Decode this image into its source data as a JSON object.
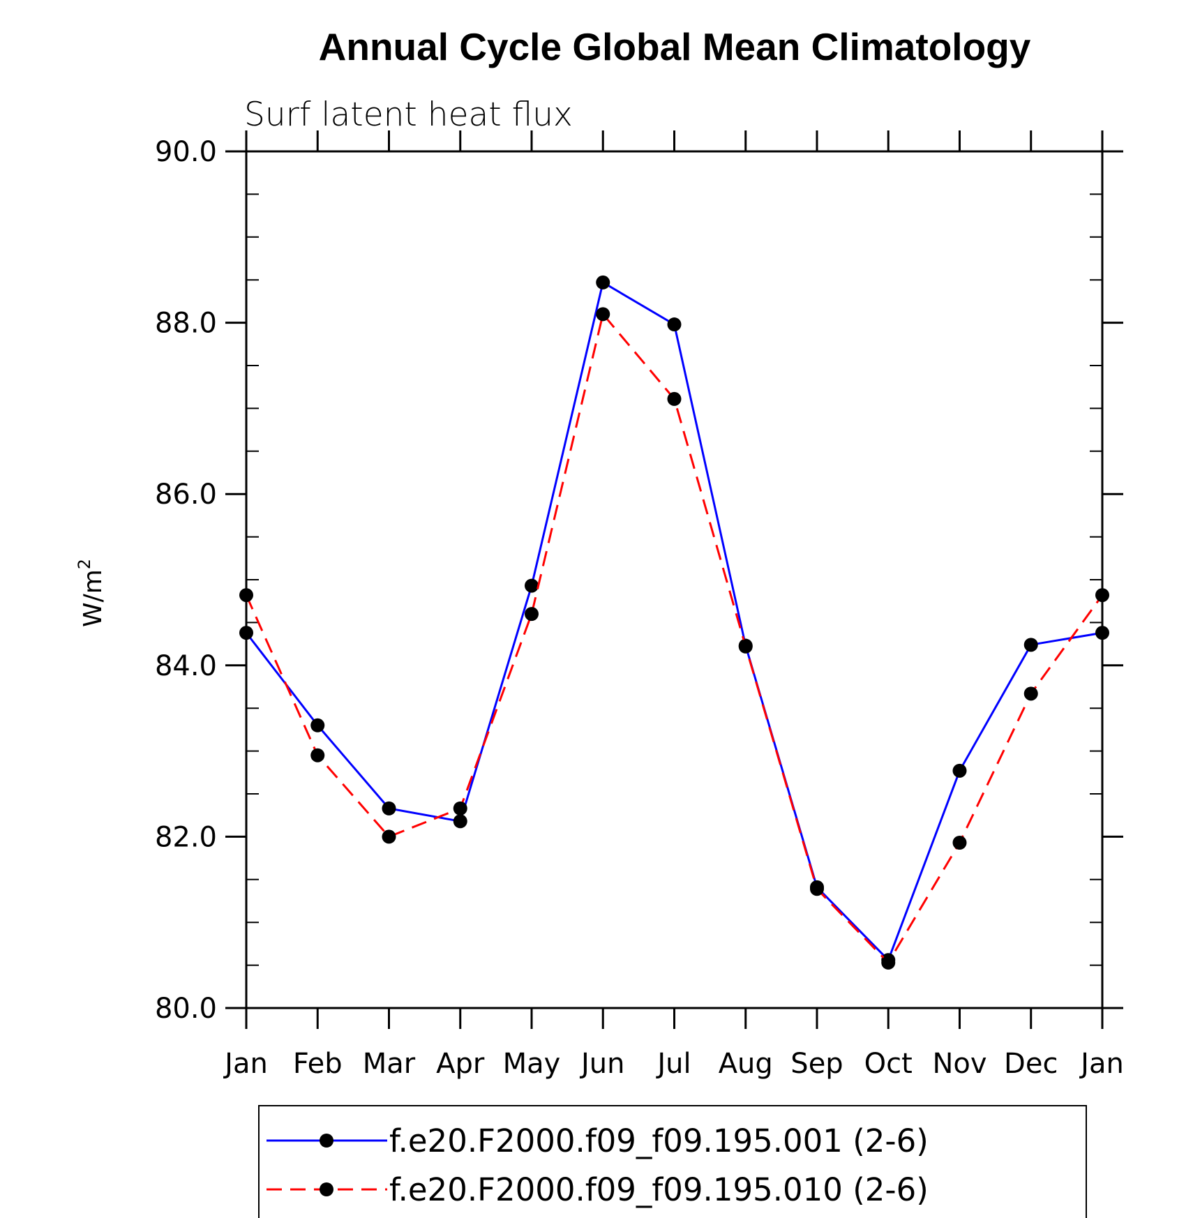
{
  "chart_data": {
    "type": "line",
    "title": "Annual Cycle Global Mean Climatology",
    "subtitle": "Surf latent heat flux",
    "ylabel_base": "W/m",
    "ylabel_sup": "2",
    "ylim": [
      80.0,
      90.0
    ],
    "ytick_values": [
      80,
      82,
      84,
      86,
      88,
      90
    ],
    "ytick_labels": [
      "80.0",
      "82.0",
      "84.0",
      "86.0",
      "88.0",
      "90.0"
    ],
    "categories": [
      "Jan",
      "Feb",
      "Mar",
      "Apr",
      "May",
      "Jun",
      "Jul",
      "Aug",
      "Sep",
      "Oct",
      "Nov",
      "Dec",
      "Jan"
    ],
    "series": [
      {
        "name": "f.e20.F2000.f09_f09.195.001 (2-6)",
        "color": "#0000ff",
        "dash": "solid",
        "values": [
          84.38,
          83.3,
          82.33,
          82.18,
          84.93,
          88.47,
          87.98,
          84.23,
          81.41,
          80.56,
          82.77,
          84.24,
          84.38
        ]
      },
      {
        "name": "f.e20.F2000.f09_f09.195.010 (2-6)",
        "color": "#ff0000",
        "dash": "dashed",
        "values": [
          84.82,
          82.95,
          82.0,
          82.33,
          84.6,
          88.1,
          87.11,
          84.22,
          81.39,
          80.53,
          81.93,
          83.67,
          84.82
        ]
      }
    ],
    "grid": false,
    "legend_position": "bottom"
  }
}
